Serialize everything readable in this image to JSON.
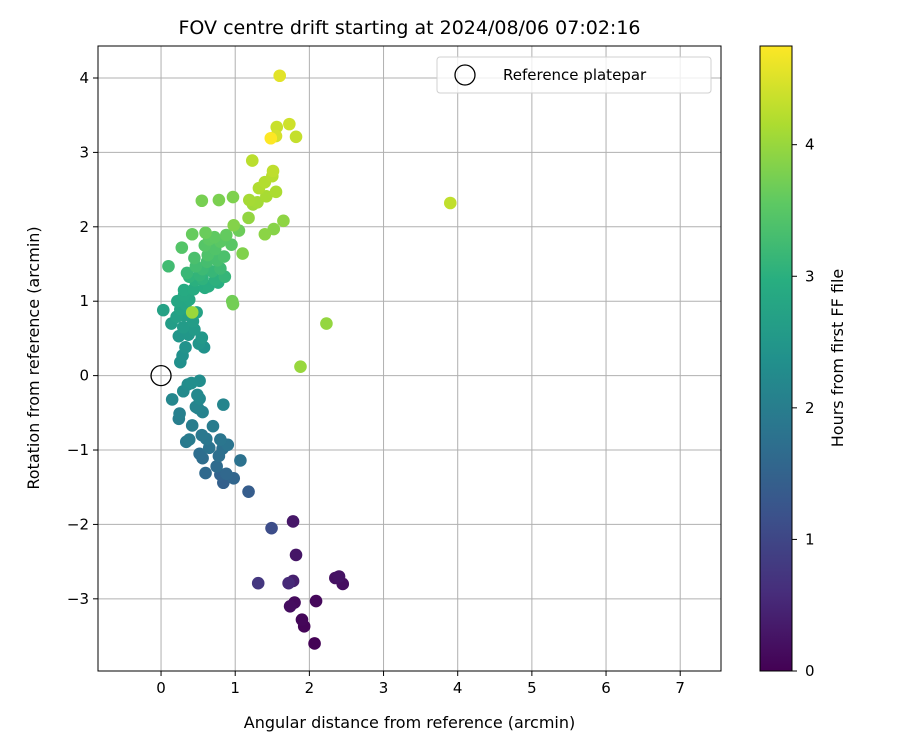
{
  "chart_data": {
    "type": "scatter",
    "title": "FOV centre drift starting at 2024/08/06 07:02:16",
    "xlabel": "Angular distance from reference (arcmin)",
    "ylabel": "Rotation from reference (arcmin)",
    "xlim": [
      -0.85,
      7.55
    ],
    "ylim": [
      -3.97,
      4.43
    ],
    "xticks": [
      0,
      1,
      2,
      3,
      4,
      5,
      6,
      7
    ],
    "yticks": [
      -3,
      -2,
      -1,
      0,
      1,
      2,
      3,
      4
    ],
    "grid": true,
    "legend": {
      "placement": "top-right",
      "entries": [
        "Reference platepar"
      ]
    },
    "colorbar": {
      "label": "Hours from first FF file",
      "range": [
        0,
        4.75
      ],
      "ticks": [
        0,
        1,
        2,
        3,
        4
      ],
      "colormap": "viridis"
    },
    "reference_point": {
      "x": 0,
      "y": 0
    },
    "points": [
      {
        "x": 2.07,
        "y": -3.6,
        "c": 0.02
      },
      {
        "x": 1.93,
        "y": -3.37,
        "c": 0.05
      },
      {
        "x": 1.9,
        "y": -3.28,
        "c": 0.08
      },
      {
        "x": 2.09,
        "y": -3.03,
        "c": 0.1
      },
      {
        "x": 1.8,
        "y": -3.05,
        "c": 0.13
      },
      {
        "x": 1.74,
        "y": -3.1,
        "c": 0.16
      },
      {
        "x": 2.45,
        "y": -2.8,
        "c": 0.18
      },
      {
        "x": 2.35,
        "y": -2.72,
        "c": 0.21
      },
      {
        "x": 2.4,
        "y": -2.7,
        "c": 0.24
      },
      {
        "x": 1.82,
        "y": -2.41,
        "c": 0.27
      },
      {
        "x": 1.78,
        "y": -1.96,
        "c": 0.3
      },
      {
        "x": 1.78,
        "y": -2.76,
        "c": 0.4
      },
      {
        "x": 1.72,
        "y": -2.79,
        "c": 0.55
      },
      {
        "x": 1.31,
        "y": -2.79,
        "c": 0.75
      },
      {
        "x": 1.49,
        "y": -2.05,
        "c": 1.1
      },
      {
        "x": 1.18,
        "y": -1.56,
        "c": 1.4
      },
      {
        "x": 0.84,
        "y": -1.44,
        "c": 1.45
      },
      {
        "x": 0.8,
        "y": -1.33,
        "c": 1.5
      },
      {
        "x": 0.98,
        "y": -1.38,
        "c": 1.55
      },
      {
        "x": 0.88,
        "y": -1.32,
        "c": 1.6
      },
      {
        "x": 0.6,
        "y": -1.31,
        "c": 1.62
      },
      {
        "x": 0.75,
        "y": -1.22,
        "c": 1.65
      },
      {
        "x": 0.56,
        "y": -1.11,
        "c": 1.68
      },
      {
        "x": 0.52,
        "y": -1.05,
        "c": 1.7
      },
      {
        "x": 0.78,
        "y": -1.08,
        "c": 1.72
      },
      {
        "x": 0.83,
        "y": -0.98,
        "c": 1.75
      },
      {
        "x": 1.07,
        "y": -1.14,
        "c": 1.78
      },
      {
        "x": 0.65,
        "y": -0.97,
        "c": 1.8
      },
      {
        "x": 0.9,
        "y": -0.93,
        "c": 1.82
      },
      {
        "x": 0.8,
        "y": -0.86,
        "c": 1.85
      },
      {
        "x": 0.61,
        "y": -0.85,
        "c": 1.87
      },
      {
        "x": 0.55,
        "y": -0.8,
        "c": 1.9
      },
      {
        "x": 0.34,
        "y": -0.89,
        "c": 1.92
      },
      {
        "x": 0.38,
        "y": -0.86,
        "c": 1.95
      },
      {
        "x": 0.7,
        "y": -0.68,
        "c": 1.97
      },
      {
        "x": 0.42,
        "y": -0.67,
        "c": 2.0
      },
      {
        "x": 0.24,
        "y": -0.58,
        "c": 2.02
      },
      {
        "x": 0.25,
        "y": -0.51,
        "c": 2.05
      },
      {
        "x": 0.56,
        "y": -0.49,
        "c": 2.08
      },
      {
        "x": 0.5,
        "y": -0.44,
        "c": 2.1
      },
      {
        "x": 0.47,
        "y": -0.42,
        "c": 2.12
      },
      {
        "x": 0.84,
        "y": -0.39,
        "c": 2.15
      },
      {
        "x": 0.15,
        "y": -0.32,
        "c": 2.18
      },
      {
        "x": 0.52,
        "y": -0.31,
        "c": 2.2
      },
      {
        "x": 0.49,
        "y": -0.26,
        "c": 2.22
      },
      {
        "x": 0.3,
        "y": -0.21,
        "c": 2.25
      },
      {
        "x": 0.36,
        "y": -0.12,
        "c": 2.28
      },
      {
        "x": 0.52,
        "y": -0.07,
        "c": 2.3
      },
      {
        "x": 0.41,
        "y": -0.1,
        "c": 2.32
      },
      {
        "x": 0.26,
        "y": 0.18,
        "c": 2.35
      },
      {
        "x": 0.29,
        "y": 0.27,
        "c": 2.38
      },
      {
        "x": 0.58,
        "y": 0.38,
        "c": 2.4
      },
      {
        "x": 0.33,
        "y": 0.38,
        "c": 2.42
      },
      {
        "x": 0.51,
        "y": 0.43,
        "c": 2.45
      },
      {
        "x": 0.24,
        "y": 0.53,
        "c": 2.48
      },
      {
        "x": 0.37,
        "y": 0.55,
        "c": 2.5
      },
      {
        "x": 0.55,
        "y": 0.51,
        "c": 2.52
      },
      {
        "x": 0.45,
        "y": 0.62,
        "c": 2.55
      },
      {
        "x": 0.3,
        "y": 0.65,
        "c": 2.58
      },
      {
        "x": 0.43,
        "y": 0.73,
        "c": 2.6
      },
      {
        "x": 0.14,
        "y": 0.7,
        "c": 2.62
      },
      {
        "x": 0.31,
        "y": 0.81,
        "c": 2.65
      },
      {
        "x": 0.21,
        "y": 0.79,
        "c": 2.68
      },
      {
        "x": 0.03,
        "y": 0.88,
        "c": 2.7
      },
      {
        "x": 0.48,
        "y": 0.85,
        "c": 2.72
      },
      {
        "x": 0.26,
        "y": 0.89,
        "c": 2.75
      },
      {
        "x": 0.33,
        "y": 0.96,
        "c": 2.78
      },
      {
        "x": 0.22,
        "y": 1.0,
        "c": 2.8
      },
      {
        "x": 0.38,
        "y": 1.02,
        "c": 2.82
      },
      {
        "x": 0.31,
        "y": 1.08,
        "c": 2.85
      },
      {
        "x": 0.31,
        "y": 1.15,
        "c": 2.88
      },
      {
        "x": 0.44,
        "y": 1.16,
        "c": 2.9
      },
      {
        "x": 0.59,
        "y": 1.18,
        "c": 2.92
      },
      {
        "x": 0.64,
        "y": 1.2,
        "c": 2.95
      },
      {
        "x": 0.77,
        "y": 1.25,
        "c": 2.97
      },
      {
        "x": 0.46,
        "y": 1.28,
        "c": 3.0
      },
      {
        "x": 0.73,
        "y": 1.29,
        "c": 3.02
      },
      {
        "x": 0.56,
        "y": 1.3,
        "c": 3.05
      },
      {
        "x": 0.38,
        "y": 1.33,
        "c": 3.07
      },
      {
        "x": 0.52,
        "y": 1.35,
        "c": 3.1
      },
      {
        "x": 0.86,
        "y": 1.33,
        "c": 3.12
      },
      {
        "x": 0.69,
        "y": 1.4,
        "c": 3.15
      },
      {
        "x": 0.35,
        "y": 1.38,
        "c": 3.17
      },
      {
        "x": 0.56,
        "y": 1.43,
        "c": 3.2
      },
      {
        "x": 0.8,
        "y": 1.44,
        "c": 3.22
      },
      {
        "x": 0.1,
        "y": 1.47,
        "c": 3.25
      },
      {
        "x": 0.47,
        "y": 1.47,
        "c": 3.27
      },
      {
        "x": 0.62,
        "y": 1.53,
        "c": 3.3
      },
      {
        "x": 0.76,
        "y": 1.55,
        "c": 3.32
      },
      {
        "x": 0.45,
        "y": 1.58,
        "c": 3.35
      },
      {
        "x": 0.85,
        "y": 1.6,
        "c": 3.37
      },
      {
        "x": 0.63,
        "y": 1.62,
        "c": 3.4
      },
      {
        "x": 0.73,
        "y": 1.7,
        "c": 3.42
      },
      {
        "x": 0.28,
        "y": 1.72,
        "c": 3.45
      },
      {
        "x": 0.59,
        "y": 1.75,
        "c": 3.47
      },
      {
        "x": 0.95,
        "y": 1.76,
        "c": 3.5
      },
      {
        "x": 0.8,
        "y": 1.8,
        "c": 3.52
      },
      {
        "x": 0.65,
        "y": 1.83,
        "c": 3.55
      },
      {
        "x": 0.72,
        "y": 1.86,
        "c": 3.57
      },
      {
        "x": 0.88,
        "y": 1.89,
        "c": 3.6
      },
      {
        "x": 0.42,
        "y": 1.9,
        "c": 3.62
      },
      {
        "x": 0.6,
        "y": 1.92,
        "c": 3.65
      },
      {
        "x": 1.05,
        "y": 1.95,
        "c": 3.67
      },
      {
        "x": 0.96,
        "y": 1.0,
        "c": 3.7
      },
      {
        "x": 0.97,
        "y": 0.96,
        "c": 3.72
      },
      {
        "x": 0.55,
        "y": 2.35,
        "c": 3.75
      },
      {
        "x": 0.78,
        "y": 2.36,
        "c": 3.78
      },
      {
        "x": 0.97,
        "y": 2.4,
        "c": 3.8
      },
      {
        "x": 1.1,
        "y": 1.64,
        "c": 3.82
      },
      {
        "x": 0.98,
        "y": 2.02,
        "c": 3.85
      },
      {
        "x": 1.52,
        "y": 1.97,
        "c": 3.87
      },
      {
        "x": 1.4,
        "y": 1.9,
        "c": 3.9
      },
      {
        "x": 1.65,
        "y": 2.08,
        "c": 3.92
      },
      {
        "x": 1.18,
        "y": 2.12,
        "c": 3.95
      },
      {
        "x": 2.23,
        "y": 0.7,
        "c": 3.97
      },
      {
        "x": 1.88,
        "y": 0.12,
        "c": 4.0
      },
      {
        "x": 0.42,
        "y": 0.85,
        "c": 4.02
      },
      {
        "x": 1.24,
        "y": 2.3,
        "c": 4.05
      },
      {
        "x": 1.3,
        "y": 2.33,
        "c": 4.08
      },
      {
        "x": 1.19,
        "y": 2.36,
        "c": 4.1
      },
      {
        "x": 1.42,
        "y": 2.41,
        "c": 4.12
      },
      {
        "x": 1.55,
        "y": 2.47,
        "c": 4.15
      },
      {
        "x": 1.32,
        "y": 2.52,
        "c": 4.18
      },
      {
        "x": 1.4,
        "y": 2.6,
        "c": 4.2
      },
      {
        "x": 1.5,
        "y": 2.68,
        "c": 4.22
      },
      {
        "x": 1.23,
        "y": 2.89,
        "c": 4.25
      },
      {
        "x": 1.51,
        "y": 2.75,
        "c": 4.28
      },
      {
        "x": 3.9,
        "y": 2.32,
        "c": 4.3
      },
      {
        "x": 1.82,
        "y": 3.21,
        "c": 4.33
      },
      {
        "x": 1.56,
        "y": 3.34,
        "c": 4.36
      },
      {
        "x": 1.73,
        "y": 3.38,
        "c": 4.4
      },
      {
        "x": 1.55,
        "y": 3.22,
        "c": 4.45
      },
      {
        "x": 1.6,
        "y": 4.03,
        "c": 4.55
      },
      {
        "x": 1.48,
        "y": 3.19,
        "c": 4.75
      }
    ]
  }
}
